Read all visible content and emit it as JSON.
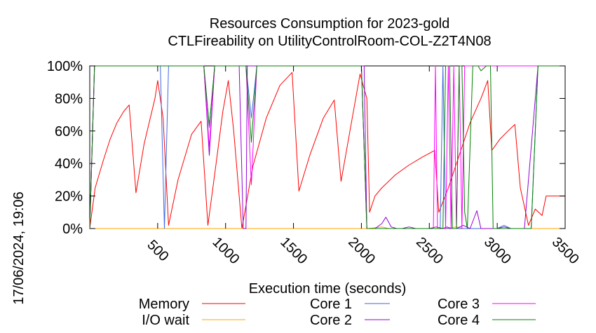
{
  "chart_data": {
    "type": "line",
    "title_line1": "Resources Consumption for 2023-gold",
    "title_line2": "CTLFireability on UtilityControlRoom-COL-Z2T4N08",
    "xlabel": "Execution time (seconds)",
    "ylabel": "",
    "side_label": "17/06/2024, 19:06",
    "xlim": [
      0,
      3500
    ],
    "ylim": [
      0,
      100
    ],
    "x_ticks": [
      {
        "value": 500,
        "label": "500"
      },
      {
        "value": 1000,
        "label": "1000"
      },
      {
        "value": 1500,
        "label": "1500"
      },
      {
        "value": 2000,
        "label": "2000"
      },
      {
        "value": 2500,
        "label": "2500"
      },
      {
        "value": 3000,
        "label": "3000"
      },
      {
        "value": 3500,
        "label": "3500"
      }
    ],
    "y_ticks": [
      {
        "value": 0,
        "label": "0%"
      },
      {
        "value": 20,
        "label": "20%"
      },
      {
        "value": 40,
        "label": "40%"
      },
      {
        "value": 60,
        "label": "60%"
      },
      {
        "value": 80,
        "label": "80%"
      },
      {
        "value": 100,
        "label": "100%"
      }
    ],
    "grid": false,
    "legend_position": "bottom",
    "series": [
      {
        "name": "Memory",
        "color": "#ff0000",
        "points": [
          [
            0,
            0
          ],
          [
            40,
            25
          ],
          [
            100,
            42
          ],
          [
            150,
            55
          ],
          [
            200,
            65
          ],
          [
            250,
            72
          ],
          [
            290,
            76
          ],
          [
            340,
            22
          ],
          [
            400,
            52
          ],
          [
            480,
            80
          ],
          [
            500,
            91
          ],
          [
            540,
            68
          ],
          [
            580,
            2
          ],
          [
            650,
            30
          ],
          [
            750,
            58
          ],
          [
            820,
            66
          ],
          [
            870,
            2
          ],
          [
            930,
            40
          ],
          [
            980,
            72
          ],
          [
            1020,
            91
          ],
          [
            1060,
            60
          ],
          [
            1120,
            0
          ],
          [
            1200,
            38
          ],
          [
            1300,
            68
          ],
          [
            1400,
            88
          ],
          [
            1490,
            96
          ],
          [
            1540,
            23
          ],
          [
            1620,
            45
          ],
          [
            1720,
            68
          ],
          [
            1800,
            79
          ],
          [
            1850,
            29
          ],
          [
            1920,
            62
          ],
          [
            1990,
            95
          ],
          [
            2040,
            80
          ],
          [
            2060,
            10
          ],
          [
            2100,
            20
          ],
          [
            2150,
            25
          ],
          [
            2250,
            33
          ],
          [
            2350,
            39
          ],
          [
            2450,
            44
          ],
          [
            2540,
            48
          ],
          [
            2570,
            10
          ],
          [
            2640,
            25
          ],
          [
            2720,
            45
          ],
          [
            2800,
            65
          ],
          [
            2880,
            80
          ],
          [
            2930,
            91
          ],
          [
            2960,
            48
          ],
          [
            3020,
            55
          ],
          [
            3080,
            60
          ],
          [
            3130,
            64
          ],
          [
            3170,
            25
          ],
          [
            3230,
            2
          ],
          [
            3280,
            12
          ],
          [
            3330,
            8
          ],
          [
            3360,
            20
          ],
          [
            3500,
            20
          ]
        ]
      },
      {
        "name": "I/O wait",
        "color": "#ffa500",
        "points": [
          [
            0,
            0
          ],
          [
            2000,
            0
          ],
          [
            2050,
            0
          ],
          [
            2150,
            1
          ],
          [
            2200,
            0
          ],
          [
            2500,
            0
          ],
          [
            2600,
            0
          ],
          [
            2700,
            1
          ],
          [
            2750,
            0
          ],
          [
            2900,
            0
          ],
          [
            3000,
            0
          ],
          [
            3500,
            0
          ]
        ]
      },
      {
        "name": "Core 1",
        "color": "#4169e1",
        "points": [
          [
            0,
            0
          ],
          [
            35,
            100
          ],
          [
            520,
            100
          ],
          [
            550,
            0
          ],
          [
            580,
            100
          ],
          [
            840,
            100
          ],
          [
            880,
            62
          ],
          [
            920,
            100
          ],
          [
            1150,
            100
          ],
          [
            1190,
            68
          ],
          [
            1230,
            100
          ],
          [
            2000,
            100
          ],
          [
            2040,
            0
          ],
          [
            2060,
            0
          ],
          [
            2150,
            0
          ],
          [
            2200,
            0
          ],
          [
            2300,
            0
          ],
          [
            2400,
            0
          ],
          [
            2500,
            0
          ],
          [
            2580,
            0
          ],
          [
            2600,
            100
          ],
          [
            2620,
            0
          ],
          [
            2700,
            0
          ],
          [
            2800,
            0
          ],
          [
            2850,
            0
          ],
          [
            2900,
            0
          ],
          [
            2950,
            0
          ],
          [
            3000,
            0
          ],
          [
            3050,
            2
          ],
          [
            3100,
            0
          ],
          [
            3150,
            0
          ],
          [
            3200,
            0
          ],
          [
            3250,
            0
          ],
          [
            3300,
            100
          ],
          [
            3500,
            100
          ]
        ]
      },
      {
        "name": "Core 2",
        "color": "#9400d3",
        "points": [
          [
            0,
            0
          ],
          [
            35,
            100
          ],
          [
            840,
            100
          ],
          [
            880,
            45
          ],
          [
            920,
            100
          ],
          [
            1100,
            100
          ],
          [
            1130,
            0
          ],
          [
            1150,
            0
          ],
          [
            1160,
            100
          ],
          [
            2000,
            100
          ],
          [
            2020,
            100
          ],
          [
            2040,
            0
          ],
          [
            2100,
            0
          ],
          [
            2150,
            3
          ],
          [
            2180,
            7
          ],
          [
            2220,
            1
          ],
          [
            2260,
            0
          ],
          [
            2300,
            0
          ],
          [
            2350,
            1
          ],
          [
            2400,
            0
          ],
          [
            2500,
            0
          ],
          [
            2550,
            1
          ],
          [
            2600,
            0
          ],
          [
            2630,
            1
          ],
          [
            2660,
            0
          ],
          [
            2700,
            0
          ],
          [
            2750,
            2
          ],
          [
            2800,
            0
          ],
          [
            2850,
            11
          ],
          [
            2880,
            0
          ],
          [
            2920,
            0
          ],
          [
            3000,
            0
          ],
          [
            3050,
            1
          ],
          [
            3100,
            0
          ],
          [
            3200,
            0
          ],
          [
            3300,
            100
          ],
          [
            3500,
            100
          ]
        ]
      },
      {
        "name": "Core 3",
        "color": "#ff00ff",
        "points": [
          [
            0,
            0
          ],
          [
            35,
            100
          ],
          [
            840,
            100
          ],
          [
            880,
            50
          ],
          [
            920,
            100
          ],
          [
            1150,
            100
          ],
          [
            1190,
            27
          ],
          [
            1230,
            100
          ],
          [
            2000,
            100
          ],
          [
            2040,
            0
          ],
          [
            2500,
            0
          ],
          [
            2530,
            0
          ],
          [
            2545,
            100
          ],
          [
            2560,
            0
          ],
          [
            2620,
            0
          ],
          [
            2640,
            100
          ],
          [
            2660,
            0
          ],
          [
            2680,
            100
          ],
          [
            2700,
            0
          ],
          [
            2720,
            100
          ],
          [
            2740,
            0
          ],
          [
            2760,
            100
          ],
          [
            3250,
            100
          ],
          [
            3300,
            100
          ],
          [
            3500,
            100
          ]
        ]
      },
      {
        "name": "Core 4",
        "color": "#008000",
        "points": [
          [
            0,
            0
          ],
          [
            35,
            100
          ],
          [
            840,
            100
          ],
          [
            880,
            63
          ],
          [
            920,
            100
          ],
          [
            1150,
            100
          ],
          [
            1190,
            53
          ],
          [
            1230,
            100
          ],
          [
            2000,
            100
          ],
          [
            2040,
            0
          ],
          [
            2600,
            0
          ],
          [
            2620,
            100
          ],
          [
            2650,
            100
          ],
          [
            2670,
            0
          ],
          [
            2700,
            0
          ],
          [
            2720,
            100
          ],
          [
            2740,
            100
          ],
          [
            2760,
            10
          ],
          [
            2780,
            0
          ],
          [
            2820,
            100
          ],
          [
            2860,
            100
          ],
          [
            2880,
            97
          ],
          [
            2920,
            100
          ],
          [
            2950,
            100
          ],
          [
            2970,
            0
          ],
          [
            3000,
            0
          ],
          [
            3050,
            0
          ],
          [
            3100,
            0
          ],
          [
            3200,
            0
          ],
          [
            3250,
            0
          ],
          [
            3300,
            100
          ],
          [
            3500,
            100
          ]
        ]
      }
    ]
  }
}
